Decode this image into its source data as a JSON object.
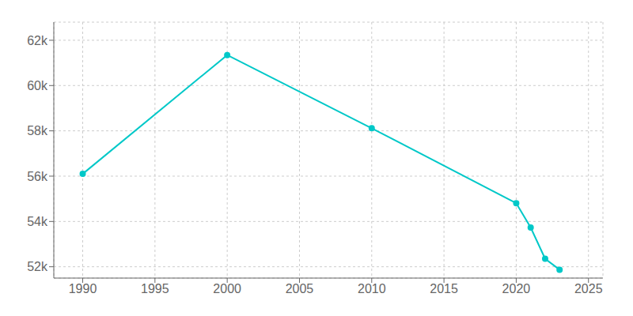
{
  "chart_data": {
    "type": "line",
    "x": [
      1990,
      2000,
      2010,
      2020,
      2021,
      2022,
      2023
    ],
    "values": [
      56100,
      61348,
      58114,
      54807,
      53730,
      52355,
      51870
    ],
    "color": "#00C8C8",
    "marker": "circle",
    "xlim": [
      1988,
      2026
    ],
    "ylim": [
      51500,
      62800
    ],
    "xticks": [
      1990,
      1995,
      2000,
      2005,
      2010,
      2015,
      2020,
      2025
    ],
    "yticks": [
      {
        "value": 52000,
        "label": "52k"
      },
      {
        "value": 54000,
        "label": "54k"
      },
      {
        "value": 56000,
        "label": "56k"
      },
      {
        "value": 58000,
        "label": "58k"
      },
      {
        "value": 60000,
        "label": "60k"
      },
      {
        "value": 62000,
        "label": "62k"
      }
    ],
    "grid": true
  }
}
